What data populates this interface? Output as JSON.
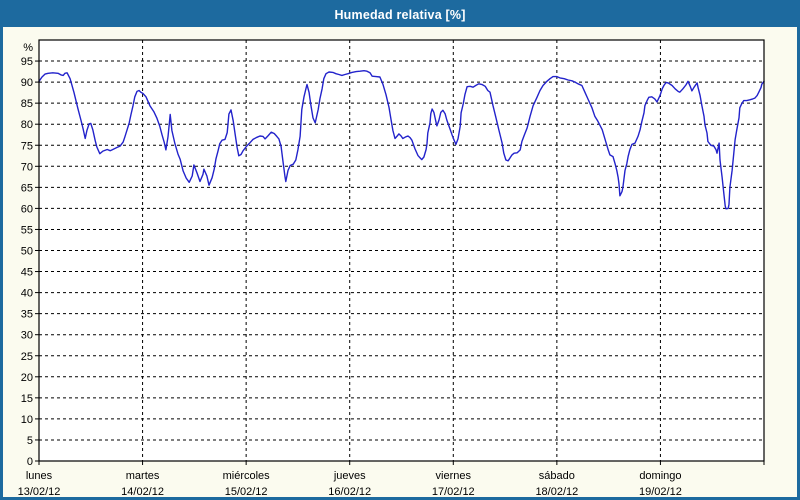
{
  "window": {
    "title": "Humedad relativa [%]"
  },
  "colors": {
    "titlebar_bg": "#1d6a9f",
    "frame_border": "#1d6a9f",
    "page_bg": "#fbfbef",
    "plot_bg": "#ffffff",
    "line": "#2323cb",
    "grid": "#000000",
    "text": "#000000",
    "title_text": "#ffffff"
  },
  "chart_data": {
    "type": "line",
    "title": "Humedad relativa [%]",
    "ylabel_unit": "%",
    "ylim": [
      0,
      100
    ],
    "ytick_step": 5,
    "ytick_labels": [
      "0",
      "5",
      "10",
      "15",
      "20",
      "25",
      "30",
      "35",
      "40",
      "45",
      "50",
      "55",
      "60",
      "65",
      "70",
      "75",
      "80",
      "85",
      "90",
      "95"
    ],
    "grid": "dashed",
    "legend": "none",
    "x_unit": "hours",
    "xlim": [
      0,
      168
    ],
    "days": [
      {
        "name": "lunes",
        "date": "13/02/12"
      },
      {
        "name": "martes",
        "date": "14/02/12"
      },
      {
        "name": "miércoles",
        "date": "15/02/12"
      },
      {
        "name": "jueves",
        "date": "16/02/12"
      },
      {
        "name": "viernes",
        "date": "17/02/12"
      },
      {
        "name": "sábado",
        "date": "18/02/12"
      },
      {
        "name": "domingo",
        "date": "19/02/12"
      }
    ],
    "series": [
      {
        "name": "Humedad relativa",
        "color": "#2323cb",
        "points": [
          [
            0,
            90.2
          ],
          [
            0.7,
            91.2
          ],
          [
            1.4,
            91.9
          ],
          [
            2.1,
            92.1
          ],
          [
            3.2,
            92.2
          ],
          [
            4.4,
            92.1
          ],
          [
            5.1,
            91.7
          ],
          [
            5.6,
            91.6
          ],
          [
            6,
            92.1
          ],
          [
            6.5,
            92.2
          ],
          [
            7.2,
            90.8
          ],
          [
            8.1,
            87.5
          ],
          [
            9,
            83.8
          ],
          [
            9.7,
            81
          ],
          [
            10.2,
            79
          ],
          [
            10.7,
            76.6
          ],
          [
            11.1,
            78.5
          ],
          [
            11.6,
            80.1
          ],
          [
            12,
            80.2
          ],
          [
            12.5,
            78.6
          ],
          [
            13,
            76.2
          ],
          [
            13.4,
            74.6
          ],
          [
            14.1,
            73
          ],
          [
            14.8,
            73.6
          ],
          [
            15.8,
            74
          ],
          [
            16.5,
            73.7
          ],
          [
            17.1,
            74
          ],
          [
            18.1,
            74.5
          ],
          [
            18.8,
            74.8
          ],
          [
            19.5,
            75.8
          ],
          [
            19.9,
            77
          ],
          [
            20.4,
            78.6
          ],
          [
            20.9,
            80.3
          ],
          [
            21.3,
            82.2
          ],
          [
            21.8,
            84.5
          ],
          [
            22.2,
            86.5
          ],
          [
            22.7,
            87.8
          ],
          [
            23.2,
            88
          ],
          [
            23.6,
            87.6
          ],
          [
            24.1,
            87.3
          ],
          [
            24.8,
            86.5
          ],
          [
            25.7,
            84.4
          ],
          [
            26.6,
            83
          ],
          [
            27.3,
            81.5
          ],
          [
            28,
            79.5
          ],
          [
            28.5,
            77.5
          ],
          [
            29,
            75.8
          ],
          [
            29.4,
            73.9
          ],
          [
            29.9,
            77
          ],
          [
            30.4,
            82.3
          ],
          [
            30.8,
            78.5
          ],
          [
            31.5,
            75.4
          ],
          [
            32.2,
            72.9
          ],
          [
            32.7,
            71.7
          ],
          [
            33.4,
            68.9
          ],
          [
            34.1,
            67.2
          ],
          [
            34.8,
            66.2
          ],
          [
            35.5,
            67.7
          ],
          [
            35.9,
            70.3
          ],
          [
            36.6,
            68.5
          ],
          [
            37.3,
            66.4
          ],
          [
            38,
            68.1
          ],
          [
            38.2,
            69.3
          ],
          [
            38.9,
            67.7
          ],
          [
            39.4,
            65.5
          ],
          [
            40.1,
            67.3
          ],
          [
            40.6,
            69.3
          ],
          [
            41,
            71.7
          ],
          [
            41.5,
            73.7
          ],
          [
            41.9,
            75.4
          ],
          [
            42.4,
            76.2
          ],
          [
            43.1,
            76.4
          ],
          [
            43.6,
            78
          ],
          [
            43.8,
            80
          ],
          [
            44,
            82.4
          ],
          [
            44.5,
            83.4
          ],
          [
            45,
            80.8
          ],
          [
            45.4,
            78
          ],
          [
            45.9,
            74.5
          ],
          [
            46.3,
            72.5
          ],
          [
            46.8,
            72.8
          ],
          [
            47.3,
            73.7
          ],
          [
            47.7,
            74.2
          ],
          [
            48.2,
            74.9
          ],
          [
            48.9,
            75.6
          ],
          [
            49.6,
            76.4
          ],
          [
            50.5,
            76.9
          ],
          [
            51.2,
            77.2
          ],
          [
            51.9,
            77.1
          ],
          [
            52.4,
            76.5
          ],
          [
            53.1,
            77.3
          ],
          [
            53.8,
            78.1
          ],
          [
            54.5,
            77.8
          ],
          [
            55.1,
            77.1
          ],
          [
            55.6,
            76.5
          ],
          [
            56.1,
            74.7
          ],
          [
            56.5,
            71.5
          ],
          [
            57,
            67.5
          ],
          [
            57.2,
            66.4
          ],
          [
            57.7,
            69
          ],
          [
            58.2,
            70.2
          ],
          [
            58.9,
            70.5
          ],
          [
            59.5,
            71.5
          ],
          [
            60,
            73.9
          ],
          [
            60.5,
            77.1
          ],
          [
            60.9,
            83.5
          ],
          [
            61.4,
            86.5
          ],
          [
            61.9,
            88.6
          ],
          [
            62.1,
            89.4
          ],
          [
            62.6,
            87.5
          ],
          [
            63,
            84.5
          ],
          [
            63.5,
            81.5
          ],
          [
            64,
            80.3
          ],
          [
            64.7,
            83.5
          ],
          [
            65.1,
            86
          ],
          [
            65.6,
            88.4
          ],
          [
            66,
            90.8
          ],
          [
            66.5,
            92
          ],
          [
            67.2,
            92.4
          ],
          [
            68.1,
            92.3
          ],
          [
            68.8,
            92
          ],
          [
            69.5,
            91.8
          ],
          [
            70.2,
            91.6
          ],
          [
            70.9,
            91.8
          ],
          [
            71.6,
            92
          ],
          [
            72.5,
            92.3
          ],
          [
            73.5,
            92.5
          ],
          [
            74.4,
            92.6
          ],
          [
            75.3,
            92.7
          ],
          [
            76,
            92.6
          ],
          [
            76.7,
            92.2
          ],
          [
            77.2,
            91.4
          ],
          [
            78.1,
            91.3
          ],
          [
            79,
            91.2
          ],
          [
            79.7,
            89.5
          ],
          [
            80.4,
            87
          ],
          [
            81.1,
            84
          ],
          [
            81.6,
            81
          ],
          [
            82,
            78.5
          ],
          [
            82.5,
            76.6
          ],
          [
            83,
            77.2
          ],
          [
            83.4,
            77.7
          ],
          [
            83.9,
            77.2
          ],
          [
            84.3,
            76.6
          ],
          [
            85,
            77
          ],
          [
            85.5,
            77.2
          ],
          [
            86,
            76.8
          ],
          [
            86.4,
            76.2
          ],
          [
            87.1,
            74.2
          ],
          [
            87.8,
            72.6
          ],
          [
            88.3,
            72
          ],
          [
            88.7,
            71.6
          ],
          [
            89.2,
            72.2
          ],
          [
            89.7,
            74
          ],
          [
            89.9,
            75.4
          ],
          [
            90.1,
            77.9
          ],
          [
            90.6,
            80.3
          ],
          [
            90.8,
            82.5
          ],
          [
            91.1,
            83.6
          ],
          [
            91.5,
            82.8
          ],
          [
            92,
            80.5
          ],
          [
            92.2,
            79.6
          ],
          [
            92.7,
            81
          ],
          [
            93.1,
            82.8
          ],
          [
            93.6,
            83.3
          ],
          [
            94.1,
            82.5
          ],
          [
            94.5,
            81
          ],
          [
            95.2,
            79
          ],
          [
            95.7,
            77.5
          ],
          [
            96.2,
            76.2
          ],
          [
            96.6,
            75.2
          ],
          [
            97.1,
            76.5
          ],
          [
            97.6,
            79.5
          ],
          [
            97.8,
            82.7
          ],
          [
            98.3,
            84.8
          ],
          [
            98.7,
            87
          ],
          [
            99.2,
            88.9
          ],
          [
            99.9,
            89
          ],
          [
            100.6,
            88.8
          ],
          [
            101.2,
            89.2
          ],
          [
            101.9,
            89.6
          ],
          [
            102.7,
            89.4
          ],
          [
            103.4,
            89
          ],
          [
            104,
            88
          ],
          [
            104.5,
            87.6
          ],
          [
            105.2,
            84.4
          ],
          [
            105.9,
            81.5
          ],
          [
            106.6,
            78.5
          ],
          [
            107.3,
            75.5
          ],
          [
            107.7,
            73.1
          ],
          [
            108.2,
            71.5
          ],
          [
            108.7,
            71.3
          ],
          [
            109.1,
            71.9
          ],
          [
            109.6,
            72.7
          ],
          [
            110.1,
            73.1
          ],
          [
            110.8,
            73.2
          ],
          [
            111.5,
            73.9
          ],
          [
            111.9,
            75.9
          ],
          [
            112.4,
            77.3
          ],
          [
            113.1,
            79.1
          ],
          [
            113.8,
            81.9
          ],
          [
            114.5,
            84.4
          ],
          [
            115.4,
            86.4
          ],
          [
            116.1,
            88
          ],
          [
            116.8,
            89.2
          ],
          [
            117.7,
            90.2
          ],
          [
            118.4,
            90.8
          ],
          [
            119.1,
            91.3
          ],
          [
            120,
            91.3
          ],
          [
            120.7,
            91
          ],
          [
            121.7,
            90.8
          ],
          [
            122.6,
            90.5
          ],
          [
            123.5,
            90.3
          ],
          [
            124.2,
            90
          ],
          [
            124.9,
            89.6
          ],
          [
            125.8,
            89.2
          ],
          [
            126.5,
            87.6
          ],
          [
            127.2,
            86
          ],
          [
            128.1,
            84
          ],
          [
            128.8,
            81.9
          ],
          [
            129.5,
            80.7
          ],
          [
            130.5,
            78.7
          ],
          [
            131.2,
            76.3
          ],
          [
            131.9,
            73.9
          ],
          [
            132.3,
            72.7
          ],
          [
            133,
            72.3
          ],
          [
            133.5,
            70.6
          ],
          [
            133.9,
            69
          ],
          [
            134.2,
            67.4
          ],
          [
            134.4,
            65.8
          ],
          [
            134.6,
            63
          ],
          [
            135.1,
            64
          ],
          [
            135.3,
            65
          ],
          [
            135.8,
            69
          ],
          [
            136.2,
            70.6
          ],
          [
            136.5,
            72.3
          ],
          [
            136.9,
            73.9
          ],
          [
            137.4,
            75.2
          ],
          [
            138.1,
            75.5
          ],
          [
            138.8,
            77.1
          ],
          [
            139.3,
            78.7
          ],
          [
            139.7,
            80.7
          ],
          [
            140.2,
            82.7
          ],
          [
            140.4,
            84.4
          ],
          [
            140.9,
            85.6
          ],
          [
            141.3,
            86.4
          ],
          [
            142,
            86.5
          ],
          [
            142.7,
            86
          ],
          [
            143.2,
            85.3
          ],
          [
            143.9,
            86.8
          ],
          [
            144.4,
            88.4
          ],
          [
            144.8,
            89.2
          ],
          [
            145.3,
            89.9
          ],
          [
            145.8,
            89.8
          ],
          [
            146.7,
            89.2
          ],
          [
            147.4,
            88.4
          ],
          [
            148.1,
            87.8
          ],
          [
            148.5,
            87.6
          ],
          [
            149.2,
            88.4
          ],
          [
            149.9,
            89.3
          ],
          [
            150.4,
            90.2
          ],
          [
            150.9,
            89
          ],
          [
            151.3,
            87.9
          ],
          [
            151.8,
            88.8
          ],
          [
            152.5,
            89.8
          ],
          [
            152.7,
            88.8
          ],
          [
            153.2,
            86.8
          ],
          [
            153.6,
            84.4
          ],
          [
            154.1,
            81.9
          ],
          [
            154.3,
            79.9
          ],
          [
            154.8,
            77.9
          ],
          [
            155,
            75.9
          ],
          [
            155.7,
            75
          ],
          [
            156.4,
            74.8
          ],
          [
            156.9,
            73.9
          ],
          [
            157.1,
            73.1
          ],
          [
            157.6,
            75.5
          ],
          [
            157.8,
            71.5
          ],
          [
            158.3,
            67.4
          ],
          [
            158.7,
            63.4
          ],
          [
            159,
            60.6
          ],
          [
            159.2,
            59.9
          ],
          [
            159.7,
            60
          ],
          [
            159.9,
            61
          ],
          [
            160.1,
            65
          ],
          [
            160.6,
            69
          ],
          [
            161,
            73.1
          ],
          [
            161.3,
            76.3
          ],
          [
            161.7,
            78.7
          ],
          [
            162.2,
            81.5
          ],
          [
            162.4,
            83.9
          ],
          [
            162.9,
            85
          ],
          [
            163.3,
            85.6
          ],
          [
            164,
            85.6
          ],
          [
            164.7,
            85.8
          ],
          [
            165.4,
            86
          ],
          [
            165.9,
            86.2
          ],
          [
            166.4,
            86.8
          ],
          [
            166.8,
            87.6
          ],
          [
            167.3,
            88.7
          ],
          [
            167.5,
            89.5
          ],
          [
            168,
            90.2
          ]
        ]
      }
    ]
  }
}
